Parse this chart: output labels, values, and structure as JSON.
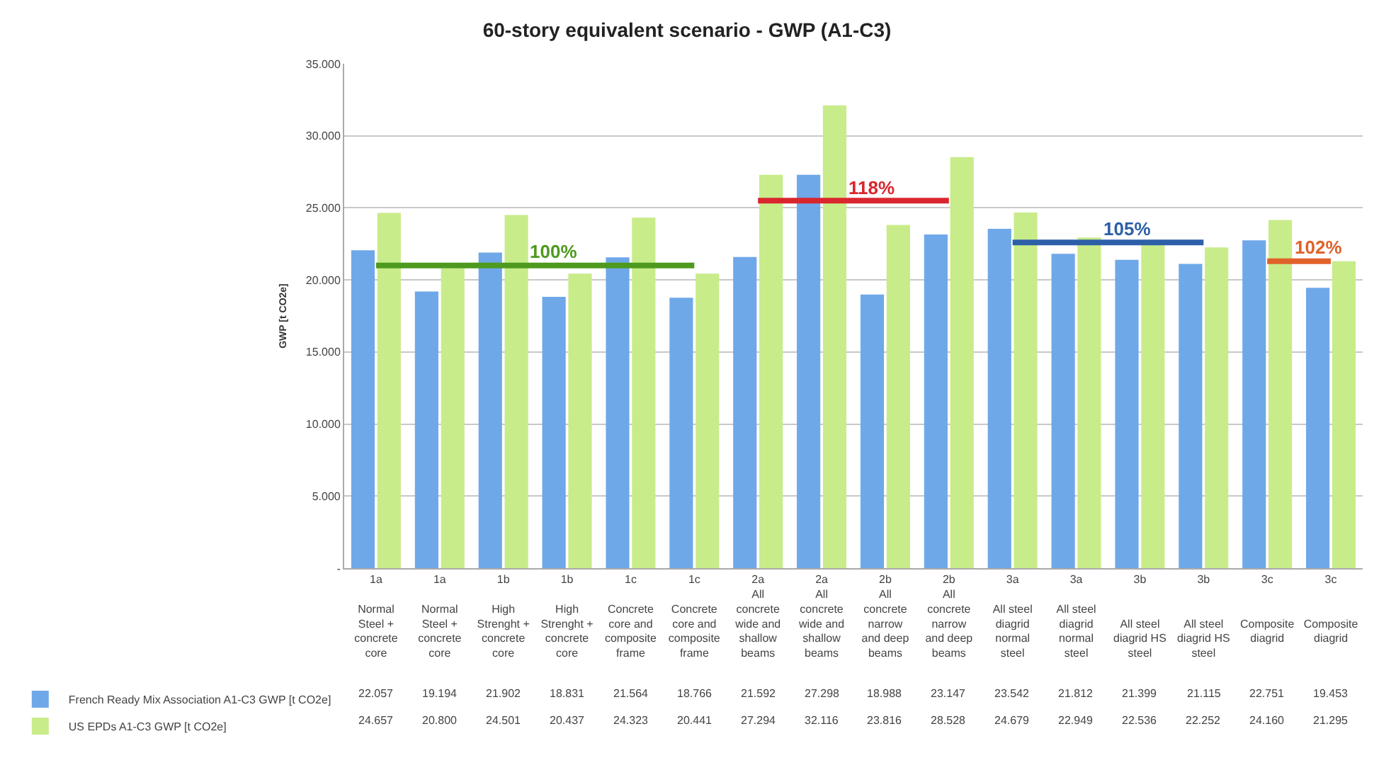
{
  "chart_data": {
    "type": "bar",
    "title": "60-story equivalent scenario - GWP (A1-C3)",
    "ylabel": "GWP [t CO2e]",
    "categories": [
      "1a\n\nNormal\nSteel +\nconcrete\ncore",
      "1a\n\nNormal\nSteel +\nconcrete\ncore",
      "1b\n\nHigh\nStrenght +\nconcrete\ncore",
      "1b\n\nHigh\nStrenght +\nconcrete\ncore",
      "1c\n\nConcrete\ncore and\ncomposite\nframe",
      "1c\n\nConcrete\ncore and\ncomposite\nframe",
      "2a\nAll\nconcrete\nwide and\nshallow\nbeams",
      "2a\nAll\nconcrete\nwide and\nshallow\nbeams",
      "2b\nAll\nconcrete\nnarrow\nand deep\nbeams",
      "2b\nAll\nconcrete\nnarrow\nand deep\nbeams",
      "3a\n\nAll steel\ndiagrid\nnormal\nsteel",
      "3a\n\nAll steel\ndiagrid\nnormal\nsteel",
      "3b\n\n\nAll steel\ndiagrid HS\nsteel",
      "3b\n\n\nAll steel\ndiagrid HS\nsteel",
      "3c\n\n\nComposite\ndiagrid",
      "3c\n\n\nComposite\ndiagrid"
    ],
    "series": [
      {
        "name": "French Ready Mix Association A1-C3 GWP [t CO2e]",
        "color": "#6fa8e8",
        "values": [
          22057,
          19194,
          21902,
          18831,
          21564,
          18766,
          21592,
          27298,
          18988,
          23147,
          23542,
          21812,
          21399,
          21115,
          22751,
          19453
        ],
        "value_labels": [
          "22.057",
          "19.194",
          "21.902",
          "18.831",
          "21.564",
          "18.766",
          "21.592",
          "27.298",
          "18.988",
          "23.147",
          "23.542",
          "21.812",
          "21.399",
          "21.115",
          "22.751",
          "19.453"
        ]
      },
      {
        "name": "US EPDs A1-C3 GWP [t CO2e]",
        "color": "#c8ec8a",
        "values": [
          24657,
          20800,
          24501,
          20437,
          24323,
          20441,
          27294,
          32116,
          23816,
          28528,
          24679,
          22949,
          22536,
          22252,
          24160,
          21295
        ],
        "value_labels": [
          "24.657",
          "20.800",
          "24.501",
          "20.437",
          "24.323",
          "20.441",
          "27.294",
          "32.116",
          "23.816",
          "28.528",
          "24.679",
          "22.949",
          "22.536",
          "22.252",
          "24.160",
          "21.295"
        ]
      },
      {
        "name": "100%",
        "type": "line",
        "color": "#4e9a1e",
        "values": [
          21000,
          21000,
          21000,
          21000,
          21000,
          21000,
          null,
          null,
          null,
          null,
          null,
          null,
          null,
          null,
          null,
          null
        ]
      },
      {
        "name": "118%",
        "type": "line",
        "color": "#d9262e",
        "values": [
          null,
          null,
          null,
          null,
          null,
          null,
          25500,
          25500,
          25500,
          25500,
          null,
          null,
          null,
          null,
          null,
          null
        ]
      },
      {
        "name": "105%",
        "type": "line",
        "color": "#2c5fa8",
        "values": [
          null,
          null,
          null,
          null,
          null,
          null,
          null,
          null,
          null,
          null,
          22600,
          22600,
          22600,
          22600,
          null,
          null
        ]
      },
      {
        "name": "102%",
        "type": "line",
        "color": "#e0622a",
        "values": [
          null,
          null,
          null,
          null,
          null,
          null,
          null,
          null,
          null,
          null,
          null,
          null,
          null,
          null,
          21300,
          21300
        ]
      }
    ],
    "ylim": [
      0,
      35000
    ],
    "yticks": [
      {
        "value": 0,
        "label": "-"
      },
      {
        "value": 5000,
        "label": "5.000"
      },
      {
        "value": 10000,
        "label": "10.000"
      },
      {
        "value": 15000,
        "label": "15.000"
      },
      {
        "value": 20000,
        "label": "20.000"
      },
      {
        "value": 25000,
        "label": "25.000"
      },
      {
        "value": 30000,
        "label": "30.000"
      },
      {
        "value": 35000,
        "label": "35.000"
      }
    ],
    "grid": "y",
    "legend": "bottom left"
  }
}
